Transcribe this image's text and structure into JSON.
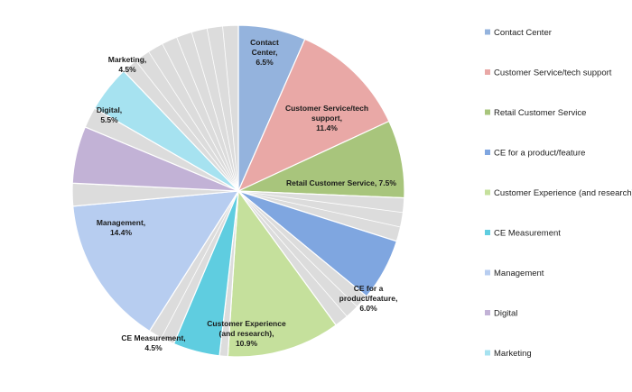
{
  "chart_data": {
    "type": "pie",
    "slices": [
      {
        "label": "Contact Center",
        "display_label": [
          "Contact",
          "Center,",
          "6.5%"
        ],
        "value": 6.5,
        "color": "#94b3dd",
        "legend": true
      },
      {
        "label": "Customer Service/tech support",
        "display_label": [
          "Customer Service/tech",
          "support,",
          "11.4%"
        ],
        "value": 11.4,
        "color": "#e9a8a6",
        "legend": true
      },
      {
        "label": "Retail Customer Service",
        "display_label": [
          "Retail Customer Service, 7.5%"
        ],
        "value": 7.5,
        "color": "#a8c57c",
        "legend": true
      },
      {
        "label": "",
        "display_label": [],
        "value": 4.2,
        "color": "#dcdcdc",
        "legend": false
      },
      {
        "label": "CE for a product/feature",
        "display_label": [
          "CE for a",
          "product/feature,",
          "6.0%"
        ],
        "value": 6.0,
        "color": "#7fa6e0",
        "legend": true
      },
      {
        "label": "",
        "display_label": [],
        "value": 4.0,
        "color": "#dcdcdc",
        "legend": false
      },
      {
        "label": "Customer Experience (and research)",
        "display_label": [
          "Customer Experience",
          "(and research),",
          "10.9%"
        ],
        "value": 10.9,
        "color": "#c5e09c",
        "legend": true
      },
      {
        "label": "",
        "display_label": [],
        "value": 0.8,
        "color": "#dcdcdc",
        "legend": false
      },
      {
        "label": "CE Measurement",
        "display_label": [
          "CE Measurement,",
          "4.5%"
        ],
        "value": 4.5,
        "color": "#5fcde0",
        "legend": true
      },
      {
        "label": "",
        "display_label": [],
        "value": 2.6,
        "color": "#dcdcdc",
        "legend": false
      },
      {
        "label": "Management",
        "display_label": [
          "Management,",
          "14.4%"
        ],
        "value": 14.4,
        "color": "#b7cdf0",
        "legend": true
      },
      {
        "label": "",
        "display_label": [],
        "value": 2.2,
        "color": "#dcdcdc",
        "legend": false
      },
      {
        "label": "Digital",
        "display_label": [
          "Digital,",
          "5.5%"
        ],
        "value": 5.5,
        "color": "#c2b2d6",
        "legend": true
      },
      {
        "label": "",
        "display_label": [],
        "value": 2.0,
        "color": "#dcdcdc",
        "legend": false
      },
      {
        "label": "Marketing",
        "display_label": [
          "Marketing,",
          "4.5%"
        ],
        "value": 4.5,
        "color": "#a6e2f0",
        "legend": true
      },
      {
        "label": "",
        "display_label": [],
        "value": 12.0,
        "color": "#dcdcdc",
        "legend": false
      }
    ],
    "start_angle_deg": 0,
    "direction": "clockwise",
    "legend_position": "right"
  }
}
